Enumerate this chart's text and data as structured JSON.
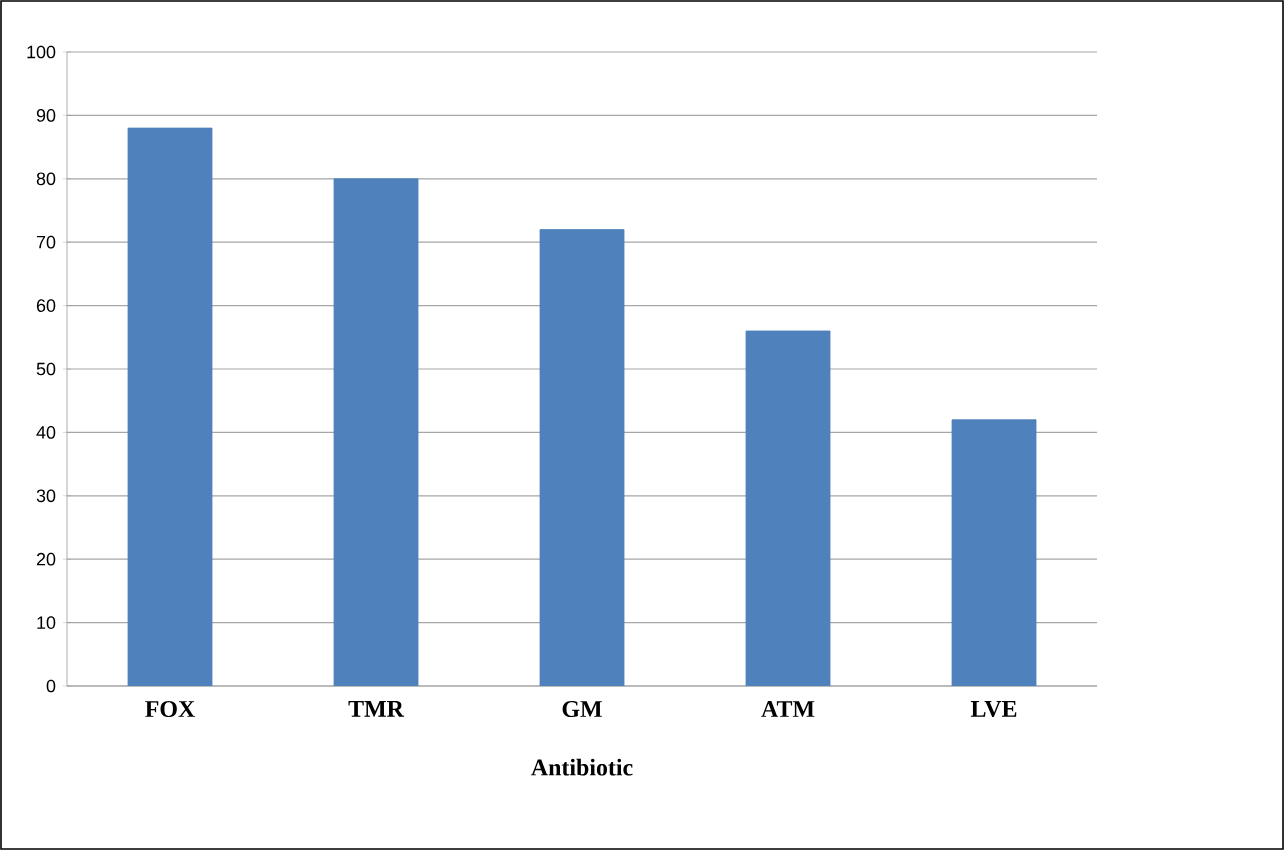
{
  "chart_data": {
    "type": "bar",
    "xlabel": "Antibiotic",
    "categories": [
      "FOX",
      "TMR",
      "GM",
      "ATM",
      "LVE"
    ],
    "values": [
      88,
      80,
      72,
      56,
      42
    ],
    "color": "#4f81bd",
    "ylim": [
      0,
      100
    ],
    "yticks": [
      0,
      10,
      20,
      30,
      40,
      50,
      60,
      70,
      80,
      90,
      100
    ],
    "grid": "y"
  }
}
